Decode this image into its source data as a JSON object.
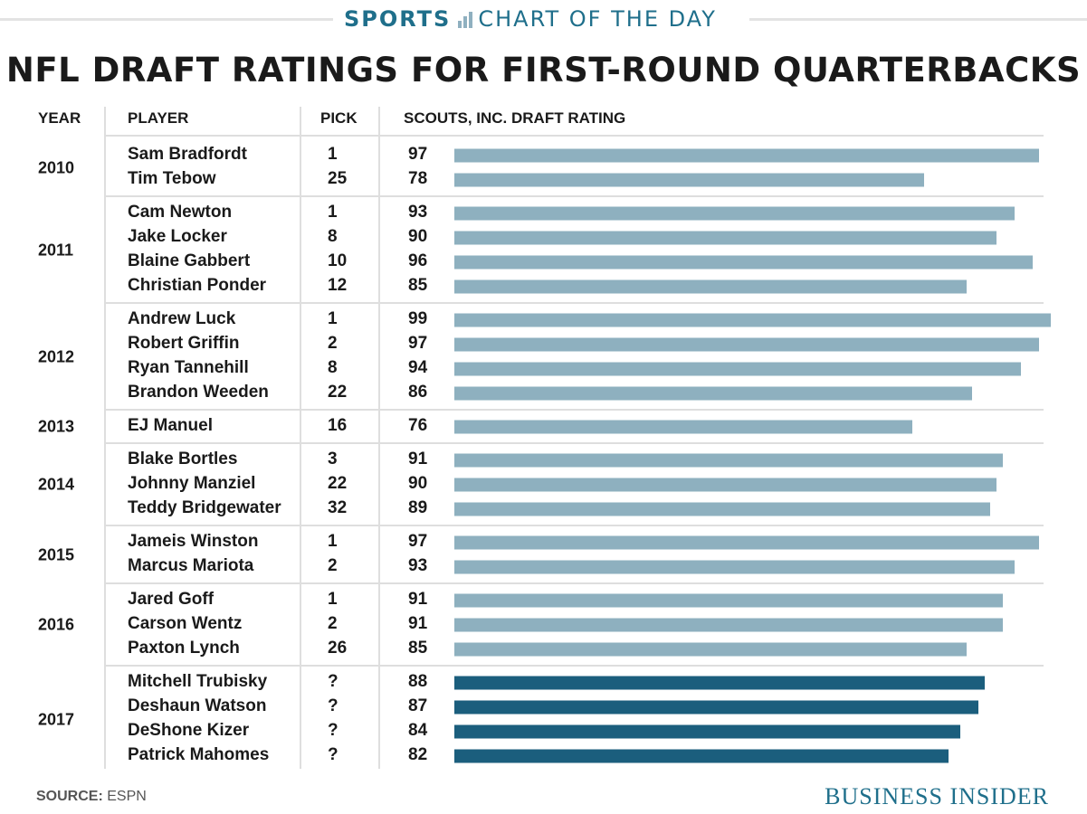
{
  "header": {
    "kicker_bold": "SPORTS",
    "kicker_rest": "CHART OF THE DAY",
    "title": "NFL DRAFT RATINGS FOR FIRST-ROUND QUARTERBACKS"
  },
  "columns": {
    "year": "YEAR",
    "player": "PLAYER",
    "pick": "PICK",
    "rating": "SCOUTS, INC. DRAFT RATING"
  },
  "footer": {
    "source_label": "SOURCE:",
    "source_value": "ESPN",
    "brand": "BUSINESS INSIDER"
  },
  "colors": {
    "past_bar": "#8eb0bf",
    "2017_bar": "#1b5e7d",
    "accent": "#1f6f8b"
  },
  "chart_data": {
    "type": "bar",
    "orientation": "horizontal",
    "xlim": [
      0,
      99
    ],
    "groups": [
      {
        "year": "2010",
        "rows": [
          {
            "player": "Sam Bradfordt",
            "pick": "1",
            "rating": 97
          },
          {
            "player": "Tim Tebow",
            "pick": "25",
            "rating": 78
          }
        ]
      },
      {
        "year": "2011",
        "rows": [
          {
            "player": "Cam Newton",
            "pick": "1",
            "rating": 93
          },
          {
            "player": "Jake Locker",
            "pick": "8",
            "rating": 90
          },
          {
            "player": "Blaine Gabbert",
            "pick": "10",
            "rating": 96
          },
          {
            "player": "Christian Ponder",
            "pick": "12",
            "rating": 85
          }
        ]
      },
      {
        "year": "2012",
        "rows": [
          {
            "player": "Andrew Luck",
            "pick": "1",
            "rating": 99
          },
          {
            "player": "Robert Griffin",
            "pick": "2",
            "rating": 97
          },
          {
            "player": "Ryan Tannehill",
            "pick": "8",
            "rating": 94
          },
          {
            "player": "Brandon Weeden",
            "pick": "22",
            "rating": 86
          }
        ]
      },
      {
        "year": "2013",
        "rows": [
          {
            "player": "EJ Manuel",
            "pick": "16",
            "rating": 76
          }
        ]
      },
      {
        "year": "2014",
        "rows": [
          {
            "player": "Blake Bortles",
            "pick": "3",
            "rating": 91
          },
          {
            "player": "Johnny Manziel",
            "pick": "22",
            "rating": 90
          },
          {
            "player": "Teddy Bridgewater",
            "pick": "32",
            "rating": 89
          }
        ]
      },
      {
        "year": "2015",
        "rows": [
          {
            "player": "Jameis Winston",
            "pick": "1",
            "rating": 97
          },
          {
            "player": "Marcus Mariota",
            "pick": "2",
            "rating": 93
          }
        ]
      },
      {
        "year": "2016",
        "rows": [
          {
            "player": "Jared Goff",
            "pick": "1",
            "rating": 91
          },
          {
            "player": "Carson Wentz",
            "pick": "2",
            "rating": 91
          },
          {
            "player": "Paxton Lynch",
            "pick": "26",
            "rating": 85
          }
        ]
      },
      {
        "year": "2017",
        "rows": [
          {
            "player": "Mitchell Trubisky",
            "pick": "?",
            "rating": 88
          },
          {
            "player": "Deshaun Watson",
            "pick": "?",
            "rating": 87
          },
          {
            "player": "DeShone Kizer",
            "pick": "?",
            "rating": 84
          },
          {
            "player": "Patrick Mahomes",
            "pick": "?",
            "rating": 82
          }
        ]
      }
    ]
  }
}
